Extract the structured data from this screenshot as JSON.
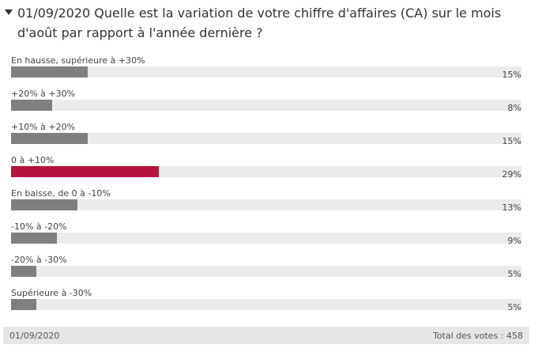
{
  "chart_data": {
    "type": "bar",
    "orientation": "horizontal",
    "title": "01/09/2020 Quelle est la variation de votre chiffre d'affaires (CA) sur le mois d'août par rapport à l'année dernière ?",
    "categories": [
      "En hausse, supérieure à +30%",
      "+20% à +30%",
      "+10% à +20%",
      "0 à +10%",
      "En baisse, de 0 à -10%",
      "-10% à -20%",
      "-20% à -30%",
      "Supérieure à -30%"
    ],
    "values": [
      15,
      8,
      15,
      29,
      13,
      9,
      5,
      5
    ],
    "value_labels": [
      "15%",
      "8%",
      "15%",
      "29%",
      "13%",
      "9%",
      "5%",
      "5%"
    ],
    "colors": [
      "#7f7f7f",
      "#7f7f7f",
      "#7f7f7f",
      "#b5123e",
      "#7f7f7f",
      "#7f7f7f",
      "#7f7f7f",
      "#7f7f7f"
    ],
    "xlim": [
      0,
      100
    ],
    "footer": {
      "date": "01/09/2020",
      "total": "Total des votes : 458"
    }
  }
}
